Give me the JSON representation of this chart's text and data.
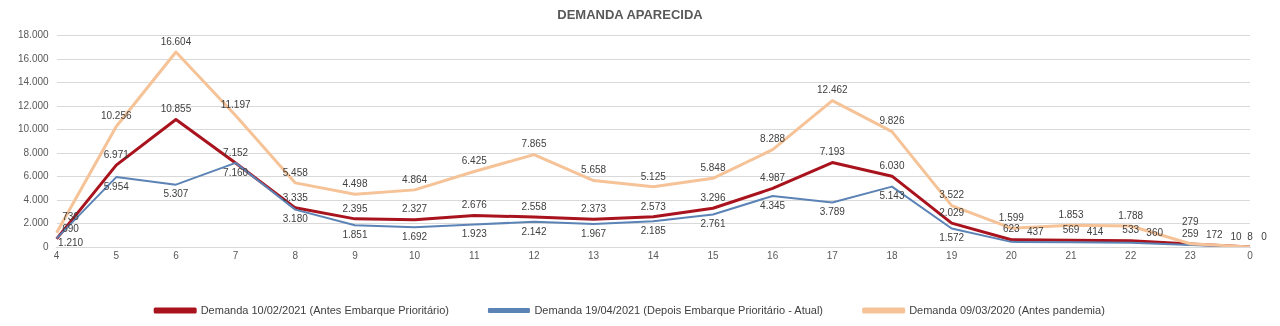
{
  "chart_data": {
    "type": "line",
    "title": "DEMANDA APARECIDA",
    "categories": [
      "4",
      "5",
      "6",
      "7",
      "8",
      "9",
      "10",
      "11",
      "12",
      "13",
      "14",
      "15",
      "16",
      "17",
      "18",
      "19",
      "20",
      "21",
      "22",
      "23",
      "0"
    ],
    "ylim": [
      0,
      18000
    ],
    "yticks": [
      {
        "value": 0,
        "label": "0"
      },
      {
        "value": 2000,
        "label": "2.000"
      },
      {
        "value": 4000,
        "label": "4.000"
      },
      {
        "value": 6000,
        "label": "6.000"
      },
      {
        "value": 8000,
        "label": "8.000"
      },
      {
        "value": 10000,
        "label": "10.000"
      },
      {
        "value": 12000,
        "label": "12.000"
      },
      {
        "value": 14000,
        "label": "14.000"
      },
      {
        "value": 16000,
        "label": "16.000"
      },
      {
        "value": 18000,
        "label": "18.000"
      }
    ],
    "grid": "y",
    "legend": "bottom",
    "marker": "none",
    "line_style": "solid",
    "series": [
      {
        "name": "Demanda 10/02/2021 (Antes Embarque Prioritário)",
        "color": "#a9131e",
        "values": [
          690,
          6971,
          10855,
          7152,
          3335,
          2395,
          2327,
          2676,
          2558,
          2373,
          2573,
          3296,
          4987,
          7193,
          6030,
          2029,
          623,
          569,
          533,
          259,
          8
        ],
        "value_labels": [
          "690",
          "6.971",
          "10.855",
          "7.152",
          "3.335",
          "2.395",
          "2.327",
          "2.676",
          "2.558",
          "2.373",
          "2.573",
          "3.296",
          "4.987",
          "7.193",
          "6.030",
          "2.029",
          "623",
          "569",
          "533",
          "259",
          "8"
        ]
      },
      {
        "name": "Demanda 19/04/2021 (Depois Embarque Prioritário - Atual)",
        "color": "#5b83b5",
        "values": [
          736,
          5954,
          5307,
          7160,
          3180,
          1851,
          1692,
          1923,
          2142,
          1967,
          2185,
          2761,
          4345,
          3789,
          5143,
          1572,
          437,
          414,
          360,
          172,
          0
        ],
        "value_labels": [
          "736",
          "5.954",
          "5.307",
          "7.160",
          "3.180",
          "1.851",
          "1.692",
          "1.923",
          "2.142",
          "1.967",
          "2.185",
          "2.761",
          "4.345",
          "3.789",
          "5.143",
          "1.572",
          "437",
          "414",
          "360",
          "172",
          "0"
        ]
      },
      {
        "name": "Demanda 09/03/2020 (Antes pandemia)",
        "color": "#f5c397",
        "values": [
          1210,
          10256,
          16604,
          11197,
          5458,
          4498,
          4864,
          6425,
          7865,
          5658,
          5125,
          5848,
          8288,
          12462,
          9826,
          3522,
          1599,
          1853,
          1788,
          279,
          10
        ],
        "value_labels": [
          "1.210",
          "10.256",
          "16.604",
          "11.197",
          "5.458",
          "4.498",
          "4.864",
          "6.425",
          "7.865",
          "5.658",
          "5.125",
          "5.848",
          "8.288",
          "12.462",
          "9.826",
          "3.522",
          "1.599",
          "1.853",
          "1.788",
          "279",
          "10"
        ]
      }
    ]
  }
}
